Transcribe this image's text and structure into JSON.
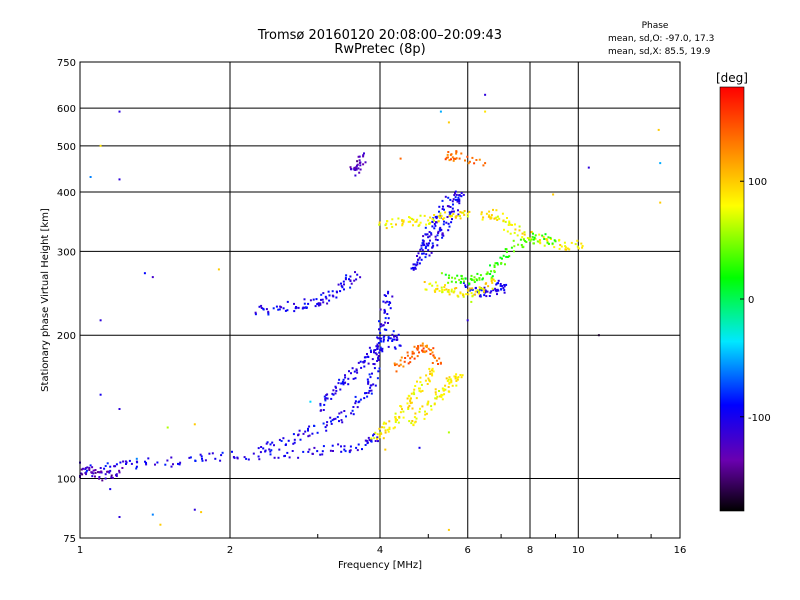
{
  "chart_data": {
    "type": "scatter",
    "title": "Tromsø 20160120 20:08:00–20:09:43",
    "subtitle": "RwPretec (8p)",
    "xlabel": "Frequency [MHz]",
    "ylabel": "Stationary phase Virtual Height [km]",
    "x_scale": "log",
    "y_scale": "log",
    "xlim": [
      1,
      16
    ],
    "ylim": [
      75,
      750
    ],
    "x_ticks": [
      1,
      2,
      4,
      6,
      8,
      10,
      16
    ],
    "x_tick_labels": [
      "1",
      "2",
      "4",
      "6",
      "8",
      "10",
      "16"
    ],
    "y_ticks": [
      75,
      100,
      200,
      300,
      400,
      500,
      600,
      750
    ],
    "y_tick_labels": [
      "75",
      "100",
      "200",
      "300",
      "400",
      "500",
      "600",
      "750"
    ],
    "grid": true,
    "phase_note": {
      "heading": "Phase",
      "line_o": "mean, sd,O: -97.0, 17.3",
      "line_x": "mean, sd,X:  85.5, 19.9"
    },
    "colorbar": {
      "label": "[deg]",
      "range": [
        -180,
        180
      ],
      "ticks": [
        100,
        0,
        -100
      ],
      "tick_labels": [
        "100",
        "0",
        "-100"
      ]
    },
    "series": [
      {
        "phase_deg": -100,
        "segments": [
          {
            "x": [
              1.0,
              1.15,
              1.3,
              1.6,
              1.9,
              2.3,
              2.8,
              3.3,
              3.7,
              3.95
            ],
            "y": [
              104,
              106,
              107,
              109,
              111,
              112,
              113,
              115,
              118,
              122
            ]
          },
          {
            "x": [
              2.3,
              2.6,
              2.9,
              3.2,
              3.5,
              3.75,
              3.9,
              4.0,
              4.05,
              4.1,
              4.15
            ],
            "y": [
              116,
              120,
              125,
              131,
              140,
              152,
              165,
              185,
              205,
              225,
              245
            ]
          },
          {
            "x": [
              3.0,
              3.2,
              3.4,
              3.6,
              3.8,
              4.0,
              4.2,
              4.4
            ],
            "y": [
              140,
              150,
              160,
              170,
              180,
              190,
              200,
              190
            ]
          },
          {
            "x": [
              2.25,
              2.5,
              2.8,
              3.0,
              3.2,
              3.4,
              3.6
            ],
            "y": [
              225,
              228,
              232,
              236,
              242,
              255,
              268
            ]
          },
          {
            "x": [
              4.6,
              4.8,
              5.0,
              5.2,
              5.4,
              5.6,
              5.8,
              5.5,
              5.2,
              5.0,
              4.9
            ],
            "y": [
              270,
              290,
              305,
              320,
              340,
              360,
              400,
              380,
              350,
              330,
              310
            ]
          },
          {
            "x": [
              6.0,
              6.3,
              6.6,
              6.9,
              7.1
            ],
            "y": [
              255,
              248,
              245,
              250,
              255
            ]
          }
        ]
      },
      {
        "phase_deg": 85,
        "segments": [
          {
            "x": [
              3.9,
              4.1,
              4.3,
              4.5,
              4.7,
              4.9,
              5.1
            ],
            "y": [
              122,
              126,
              132,
              140,
              150,
              160,
              170
            ]
          },
          {
            "x": [
              4.6,
              4.9,
              5.2,
              5.4,
              5.6,
              5.8
            ],
            "y": [
              130,
              138,
              148,
              155,
              160,
              165
            ]
          },
          {
            "x": [
              4.0,
              4.4,
              4.8,
              5.2,
              5.6,
              6.0
            ],
            "y": [
              342,
              345,
              348,
              352,
              356,
              360
            ]
          },
          {
            "x": [
              5.0,
              5.3,
              5.6,
              6.0,
              6.4,
              6.8
            ],
            "y": [
              255,
              250,
              247,
              245,
              250,
              260
            ]
          },
          {
            "x": [
              6.4,
              6.8,
              7.2,
              7.8,
              8.5,
              9.3,
              10.2
            ],
            "y": [
              355,
              360,
              340,
              325,
              315,
              310,
              308
            ]
          }
        ]
      },
      {
        "phase_deg": -130,
        "segments": [
          {
            "x": [
              3.5,
              3.6,
              3.7
            ],
            "y": [
              440,
              455,
              475
            ]
          },
          {
            "x": [
              1.0,
              1.05,
              1.1,
              1.2
            ],
            "y": [
              102,
              104,
              101,
              103
            ]
          }
        ]
      },
      {
        "phase_deg": 140,
        "segments": [
          {
            "x": [
              4.3,
              4.6,
              4.8,
              5.0,
              5.3
            ],
            "y": [
              170,
              180,
              190,
              185,
              175
            ]
          },
          {
            "x": [
              5.5,
              5.6,
              6.5
            ],
            "y": [
              470,
              480,
              460
            ]
          }
        ]
      },
      {
        "phase_deg": 30,
        "segments": [
          {
            "x": [
              5.4,
              5.8,
              6.2,
              6.6,
              7.0,
              7.6,
              8.2,
              9.0
            ],
            "y": [
              265,
              260,
              262,
              270,
              290,
              310,
              320,
              315
            ]
          }
        ]
      }
    ],
    "scattered_points": [
      {
        "x": 1.2,
        "y": 590,
        "phase_deg": -110
      },
      {
        "x": 1.1,
        "y": 500,
        "phase_deg": 90
      },
      {
        "x": 1.2,
        "y": 425,
        "phase_deg": -110
      },
      {
        "x": 1.05,
        "y": 430,
        "phase_deg": -60
      },
      {
        "x": 1.35,
        "y": 270,
        "phase_deg": -90
      },
      {
        "x": 1.4,
        "y": 265,
        "phase_deg": -120
      },
      {
        "x": 1.1,
        "y": 215,
        "phase_deg": -110
      },
      {
        "x": 1.1,
        "y": 150,
        "phase_deg": -100
      },
      {
        "x": 1.2,
        "y": 140,
        "phase_deg": -110
      },
      {
        "x": 1.5,
        "y": 128,
        "phase_deg": 60
      },
      {
        "x": 1.7,
        "y": 130,
        "phase_deg": 100
      },
      {
        "x": 1.15,
        "y": 95,
        "phase_deg": -100
      },
      {
        "x": 1.2,
        "y": 83,
        "phase_deg": -110
      },
      {
        "x": 1.4,
        "y": 84,
        "phase_deg": -60
      },
      {
        "x": 1.7,
        "y": 86,
        "phase_deg": -110
      },
      {
        "x": 1.75,
        "y": 85,
        "phase_deg": 100
      },
      {
        "x": 1.45,
        "y": 80,
        "phase_deg": 100
      },
      {
        "x": 1.9,
        "y": 275,
        "phase_deg": 100
      },
      {
        "x": 5.3,
        "y": 590,
        "phase_deg": -50
      },
      {
        "x": 5.5,
        "y": 560,
        "phase_deg": 100
      },
      {
        "x": 6.5,
        "y": 640,
        "phase_deg": -110
      },
      {
        "x": 6.5,
        "y": 590,
        "phase_deg": 90
      },
      {
        "x": 4.4,
        "y": 470,
        "phase_deg": 140
      },
      {
        "x": 8.9,
        "y": 395,
        "phase_deg": 100
      },
      {
        "x": 10.5,
        "y": 450,
        "phase_deg": -110
      },
      {
        "x": 11.0,
        "y": 200,
        "phase_deg": -170
      },
      {
        "x": 14.5,
        "y": 540,
        "phase_deg": 100
      },
      {
        "x": 14.6,
        "y": 460,
        "phase_deg": -50
      },
      {
        "x": 14.6,
        "y": 380,
        "phase_deg": 100
      },
      {
        "x": 5.5,
        "y": 78,
        "phase_deg": 100
      },
      {
        "x": 4.1,
        "y": 115,
        "phase_deg": 100
      },
      {
        "x": 4.8,
        "y": 116,
        "phase_deg": -100
      },
      {
        "x": 5.5,
        "y": 125,
        "phase_deg": 60
      },
      {
        "x": 1.0,
        "y": 108,
        "phase_deg": -110
      },
      {
        "x": 1.3,
        "y": 110,
        "phase_deg": -60
      },
      {
        "x": 2.9,
        "y": 145,
        "phase_deg": -40
      },
      {
        "x": 6.0,
        "y": 215,
        "phase_deg": -110
      },
      {
        "x": 6.1,
        "y": 235,
        "phase_deg": 60
      }
    ]
  }
}
